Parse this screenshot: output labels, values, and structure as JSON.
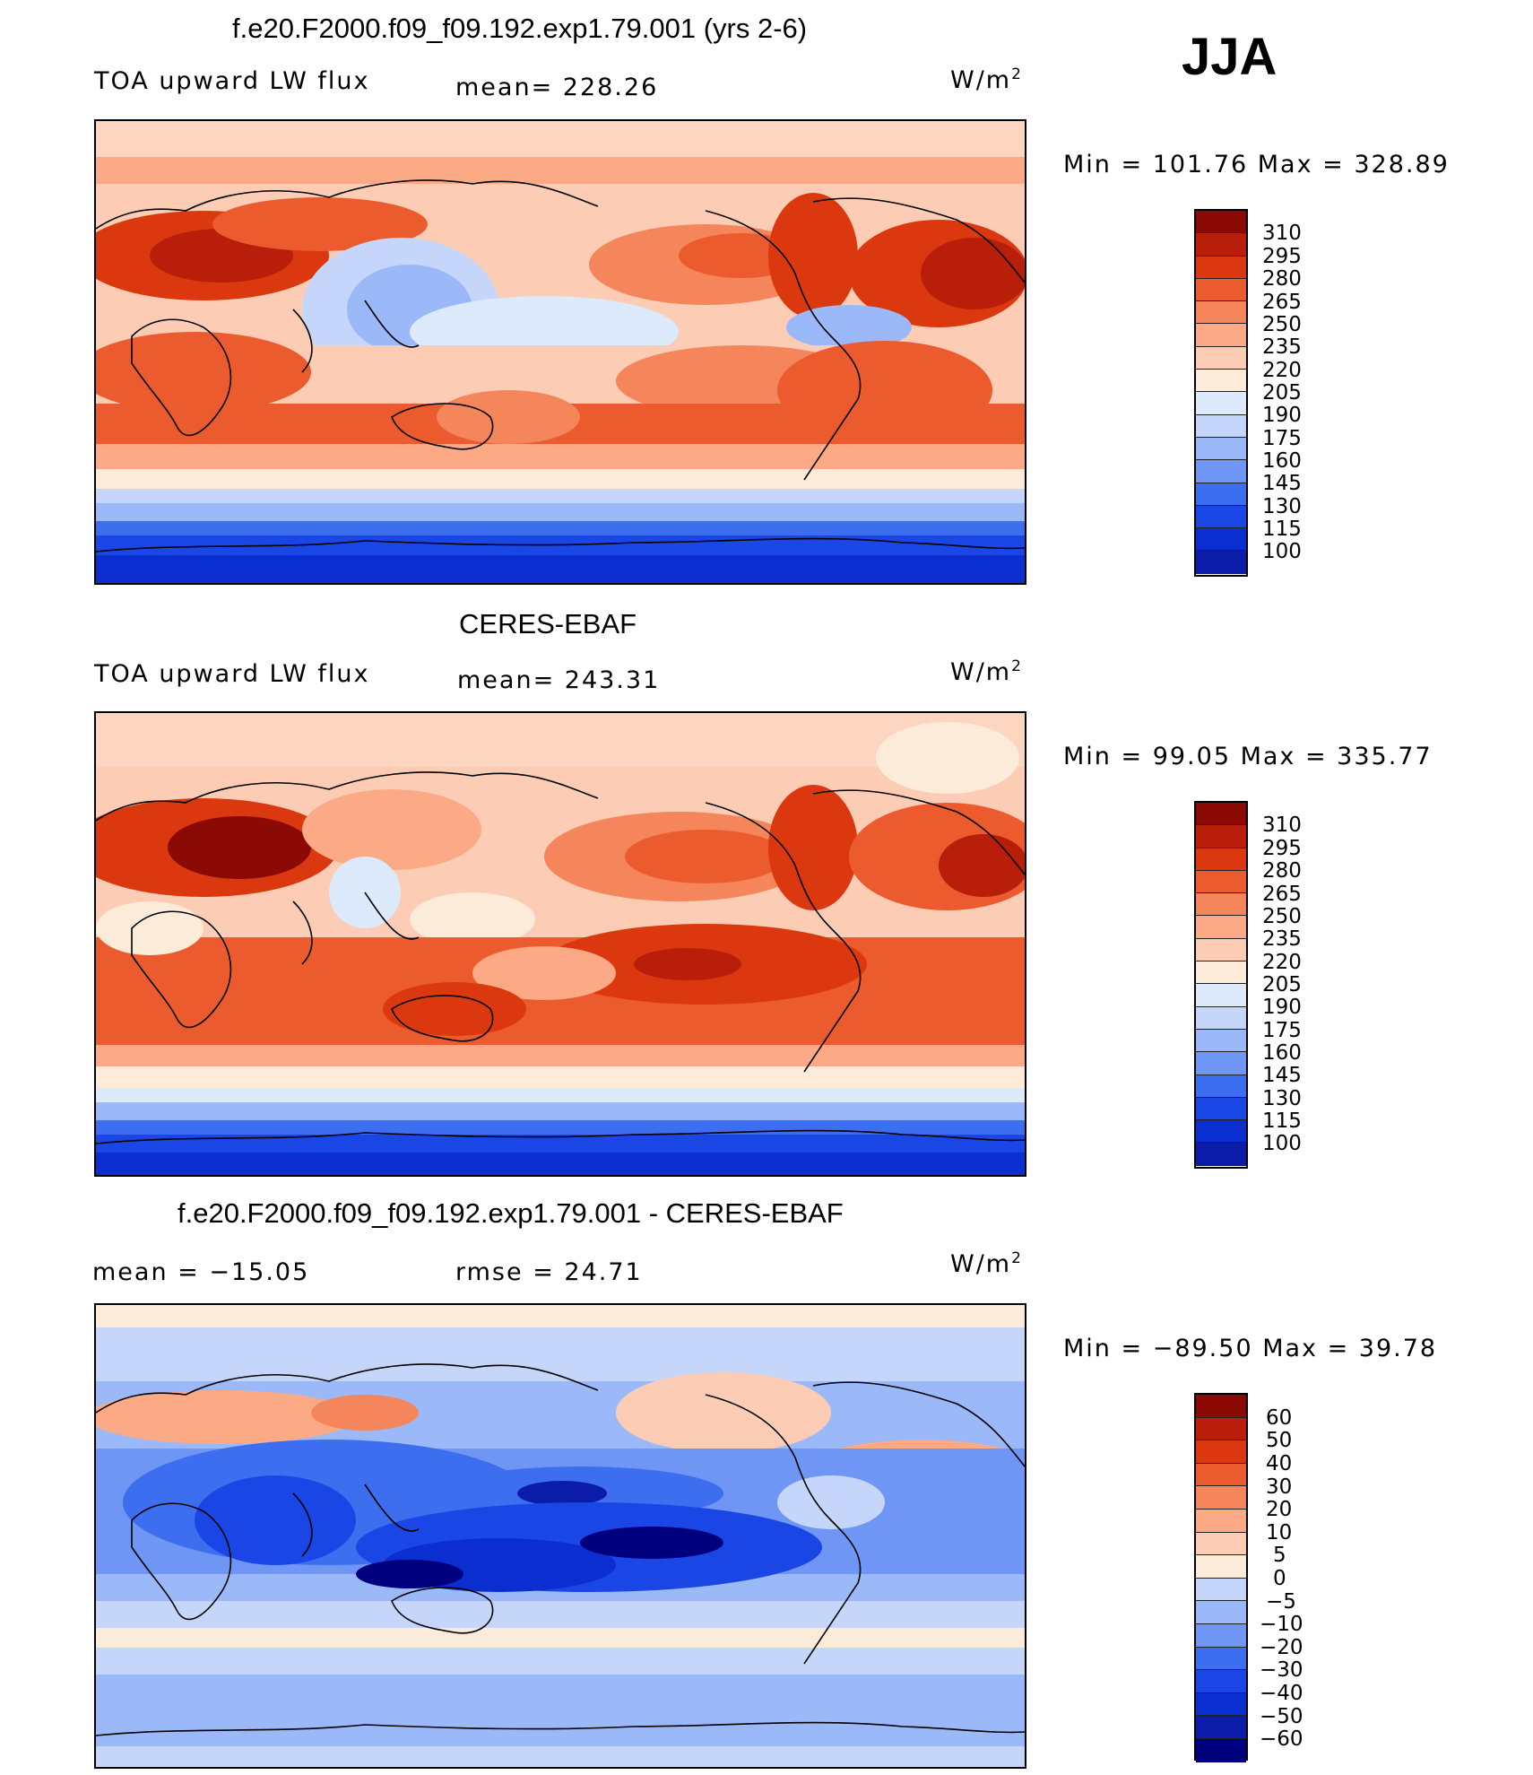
{
  "season": "JJA",
  "colors": {
    "abs": [
      "#00007f",
      "#0a1ca8",
      "#0a2ed0",
      "#1a46e6",
      "#3e6ef0",
      "#6f96f4",
      "#9bb8f8",
      "#c5d6fa",
      "#dceafb",
      "#fcebd9",
      "#fccdb4",
      "#fbaa85",
      "#f5855a",
      "#ec5b2d",
      "#dc3810",
      "#b81e0a",
      "#8c0a06"
    ],
    "diff": [
      "#00007f",
      "#0a1ca8",
      "#0a2ed0",
      "#1a46e6",
      "#3e6ef0",
      "#6f96f4",
      "#9bb8f8",
      "#c5d6fa",
      "#fcebd9",
      "#fccdb4",
      "#fbaa85",
      "#f5855a",
      "#ec5b2d",
      "#dc3810",
      "#b81e0a",
      "#8c0a06"
    ]
  },
  "panels": [
    {
      "title": "f.e20.F2000.f09_f09.192.exp1.79.001 (yrs 2-6)",
      "left_label": "TOA upward LW flux",
      "stat": "mean=  228.26",
      "units_base": "W/m",
      "units_exp": "2",
      "minmax": "Min  =  101.76 Max  =  328.89",
      "levels": [
        "310",
        "295",
        "280",
        "265",
        "250",
        "235",
        "220",
        "205",
        "190",
        "175",
        "160",
        "145",
        "130",
        "115",
        "100"
      ]
    },
    {
      "title": "CERES-EBAF",
      "left_label": "TOA upward LW flux",
      "stat": "mean=  243.31",
      "units_base": "W/m",
      "units_exp": "2",
      "minmax": "Min  =   99.05 Max  =  335.77",
      "levels": [
        "310",
        "295",
        "280",
        "265",
        "250",
        "235",
        "220",
        "205",
        "190",
        "175",
        "160",
        "145",
        "130",
        "115",
        "100"
      ]
    },
    {
      "title": "f.e20.F2000.f09_f09.192.exp1.79.001 - CERES-EBAF",
      "left_label": "mean  =  −15.05",
      "stat": "rmse  =   24.71",
      "units_base": "W/m",
      "units_exp": "2",
      "minmax": "Min  =  −89.50 Max  =   39.78",
      "levels": [
        "60",
        "50",
        "40",
        "30",
        "20",
        "10",
        "5",
        "0",
        "−5",
        "−10",
        "−20",
        "−30",
        "−40",
        "−50",
        "−60"
      ]
    }
  ]
}
